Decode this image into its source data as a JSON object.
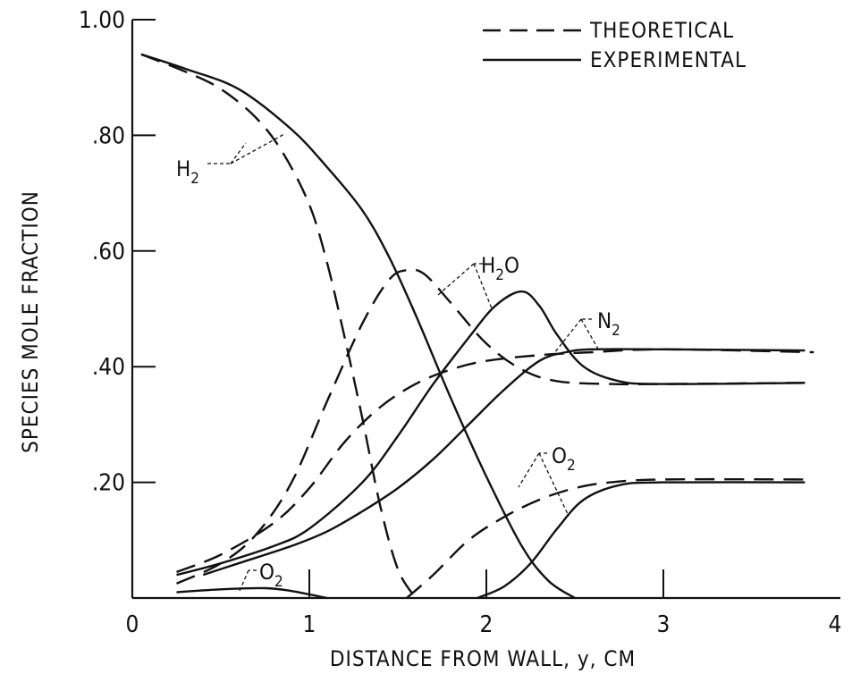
{
  "chart_data": {
    "type": "line",
    "title": "",
    "xlabel": "DISTANCE FROM WALL, y, CM",
    "ylabel": "SPECIES MOLE FRACTION",
    "xlim": [
      0,
      4
    ],
    "ylim": [
      0,
      1.0
    ],
    "x_ticks": [
      0,
      1,
      2,
      3,
      4
    ],
    "x_tick_labels": [
      "0",
      "1",
      "2",
      "3",
      "4"
    ],
    "y_ticks": [
      0.2,
      0.4,
      0.6,
      0.8,
      1.0
    ],
    "y_tick_labels": [
      ".20",
      ".40",
      ".60",
      ".80",
      "1.00"
    ],
    "grid": false,
    "legend_position": "top-right",
    "legend": [
      {
        "label": "THEORETICAL",
        "style": "dashed"
      },
      {
        "label": "EXPERIMENTAL",
        "style": "solid"
      }
    ],
    "colors": {
      "line": "#111111",
      "background": "#ffffff"
    },
    "series": [
      {
        "species": "H2",
        "style": "dashed",
        "points": [
          [
            0.05,
            0.94
          ],
          [
            0.3,
            0.91
          ],
          [
            0.5,
            0.88
          ],
          [
            0.7,
            0.83
          ],
          [
            0.85,
            0.77
          ],
          [
            1.0,
            0.68
          ],
          [
            1.1,
            0.58
          ],
          [
            1.2,
            0.45
          ],
          [
            1.3,
            0.31
          ],
          [
            1.4,
            0.16
          ],
          [
            1.5,
            0.05
          ],
          [
            1.6,
            0.0
          ]
        ]
      },
      {
        "species": "H2",
        "style": "solid",
        "points": [
          [
            0.05,
            0.94
          ],
          [
            0.3,
            0.915
          ],
          [
            0.6,
            0.88
          ],
          [
            0.9,
            0.81
          ],
          [
            1.1,
            0.745
          ],
          [
            1.3,
            0.67
          ],
          [
            1.45,
            0.59
          ],
          [
            1.6,
            0.49
          ],
          [
            1.8,
            0.345
          ],
          [
            2.0,
            0.21
          ],
          [
            2.2,
            0.09
          ],
          [
            2.35,
            0.03
          ],
          [
            2.5,
            0.0
          ]
        ]
      },
      {
        "species": "H2O",
        "style": "dashed",
        "points": [
          [
            0.25,
            0.025
          ],
          [
            0.5,
            0.06
          ],
          [
            0.7,
            0.11
          ],
          [
            0.9,
            0.2
          ],
          [
            1.1,
            0.34
          ],
          [
            1.3,
            0.475
          ],
          [
            1.45,
            0.55
          ],
          [
            1.55,
            0.567
          ],
          [
            1.65,
            0.56
          ],
          [
            1.8,
            0.51
          ],
          [
            2.0,
            0.44
          ],
          [
            2.2,
            0.395
          ],
          [
            2.4,
            0.375
          ],
          [
            2.7,
            0.37
          ],
          [
            3.0,
            0.37
          ],
          [
            3.8,
            0.372
          ]
        ]
      },
      {
        "species": "H2O",
        "style": "solid",
        "points": [
          [
            0.25,
            0.04
          ],
          [
            0.5,
            0.06
          ],
          [
            0.8,
            0.09
          ],
          [
            1.0,
            0.12
          ],
          [
            1.3,
            0.2
          ],
          [
            1.5,
            0.28
          ],
          [
            1.7,
            0.37
          ],
          [
            1.9,
            0.45
          ],
          [
            2.05,
            0.505
          ],
          [
            2.2,
            0.53
          ],
          [
            2.3,
            0.505
          ],
          [
            2.4,
            0.455
          ],
          [
            2.55,
            0.4
          ],
          [
            2.75,
            0.375
          ],
          [
            3.0,
            0.37
          ],
          [
            3.8,
            0.372
          ]
        ]
      },
      {
        "species": "N2",
        "style": "dashed",
        "points": [
          [
            0.25,
            0.045
          ],
          [
            0.5,
            0.075
          ],
          [
            0.8,
            0.13
          ],
          [
            1.0,
            0.19
          ],
          [
            1.2,
            0.27
          ],
          [
            1.4,
            0.33
          ],
          [
            1.6,
            0.37
          ],
          [
            1.8,
            0.395
          ],
          [
            2.0,
            0.41
          ],
          [
            2.3,
            0.42
          ],
          [
            2.6,
            0.425
          ],
          [
            3.0,
            0.43
          ],
          [
            3.85,
            0.425
          ]
        ]
      },
      {
        "species": "N2",
        "style": "solid",
        "points": [
          [
            0.4,
            0.04
          ],
          [
            0.6,
            0.06
          ],
          [
            0.9,
            0.09
          ],
          [
            1.1,
            0.115
          ],
          [
            1.3,
            0.15
          ],
          [
            1.5,
            0.19
          ],
          [
            1.7,
            0.24
          ],
          [
            1.9,
            0.3
          ],
          [
            2.1,
            0.36
          ],
          [
            2.3,
            0.41
          ],
          [
            2.45,
            0.425
          ],
          [
            2.6,
            0.43
          ],
          [
            3.0,
            0.43
          ],
          [
            3.8,
            0.428
          ]
        ]
      },
      {
        "species": "O2",
        "style": "dashed",
        "points": [
          [
            1.55,
            0.0
          ],
          [
            1.7,
            0.04
          ],
          [
            1.9,
            0.1
          ],
          [
            2.1,
            0.14
          ],
          [
            2.3,
            0.17
          ],
          [
            2.5,
            0.19
          ],
          [
            2.7,
            0.2
          ],
          [
            3.0,
            0.205
          ],
          [
            3.8,
            0.205
          ]
        ]
      },
      {
        "species": "O2",
        "style": "solid",
        "points": [
          [
            0.25,
            0.01
          ],
          [
            0.5,
            0.015
          ],
          [
            0.75,
            0.017
          ],
          [
            0.9,
            0.012
          ],
          [
            1.1,
            0.0
          ]
        ]
      },
      {
        "species": "O2",
        "style": "solid",
        "points": [
          [
            1.95,
            0.0
          ],
          [
            2.1,
            0.02
          ],
          [
            2.25,
            0.06
          ],
          [
            2.4,
            0.12
          ],
          [
            2.55,
            0.17
          ],
          [
            2.75,
            0.195
          ],
          [
            3.0,
            0.2
          ],
          [
            3.8,
            0.2
          ]
        ]
      }
    ],
    "annotations": [
      {
        "id": "h2",
        "label": "H",
        "sub": "2"
      },
      {
        "id": "h2o",
        "label": "H",
        "sub": "2",
        "suffix": "O"
      },
      {
        "id": "n2",
        "label": "N",
        "sub": "2"
      },
      {
        "id": "o2_upper",
        "label": "O",
        "sub": "2"
      },
      {
        "id": "o2_lower",
        "label": "O",
        "sub": "2"
      }
    ]
  }
}
